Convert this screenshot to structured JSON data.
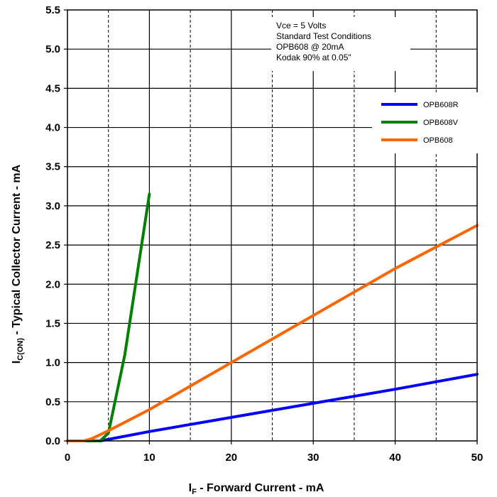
{
  "chart_data": {
    "type": "line",
    "xlabel": {
      "main": "I",
      "sub": "F",
      "rest": " - Forward Current - mA"
    },
    "ylabel": {
      "main": "I",
      "sub": "C(ON)",
      "rest": " - Typical Collector Current - mA"
    },
    "xlim": [
      0,
      50
    ],
    "ylim": [
      0,
      5.5
    ],
    "x_ticks": [
      0,
      10,
      20,
      30,
      40,
      50
    ],
    "x_tick_labels": [
      "0",
      "10",
      "20",
      "30",
      "40",
      "50"
    ],
    "x_minor_gridlines": [
      5,
      15,
      25,
      35,
      45
    ],
    "y_ticks": [
      0,
      0.5,
      1,
      1.5,
      2,
      2.5,
      3,
      3.5,
      4,
      4.5,
      5,
      5.5
    ],
    "y_tick_labels": [
      "0.0",
      "0.5",
      "1.0",
      "1.5",
      "2.0",
      "2.5",
      "3.0",
      "3.5",
      "4.0",
      "4.5",
      "5.0",
      "5.5"
    ],
    "grid": true,
    "annotation": [
      "Vce = 5 Volts",
      "Standard Test Conditions",
      "OPB608 @ 20mA",
      "Kodak 90% at 0.05\""
    ],
    "legend_position": "top-right",
    "series": [
      {
        "name": "OPB608R",
        "color": "#0000ff",
        "x": [
          0,
          4,
          10,
          20,
          30,
          40,
          50
        ],
        "y": [
          0,
          0,
          0.12,
          0.3,
          0.48,
          0.66,
          0.85
        ]
      },
      {
        "name": "OPB608V",
        "color": "#008000",
        "x": [
          0,
          4,
          5,
          5.5,
          7,
          10
        ],
        "y": [
          0,
          0,
          0.1,
          0.35,
          1.1,
          3.15
        ]
      },
      {
        "name": "OPB608",
        "color": "#ff6600",
        "x": [
          0,
          2,
          3,
          5,
          10,
          20,
          30,
          40,
          50
        ],
        "y": [
          0,
          0,
          0.03,
          0.13,
          0.4,
          1.0,
          1.6,
          2.2,
          2.75
        ]
      }
    ]
  }
}
